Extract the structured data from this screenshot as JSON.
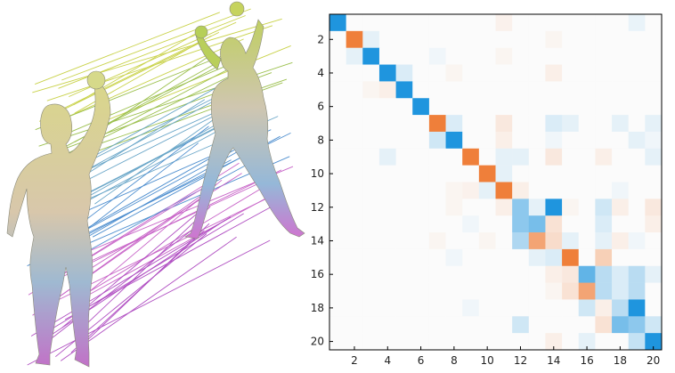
{
  "left_panel": {
    "description_icon": "shape-correspondence-icon",
    "line_colors": [
      "#c9d24a",
      "#9cc04e",
      "#6aa6c8",
      "#4f8fcf",
      "#c865c8",
      "#b04fc2"
    ]
  },
  "chart_data": {
    "type": "heatmap",
    "title": "",
    "xlabel": "",
    "ylabel": "",
    "x_ticks": [
      "2",
      "4",
      "6",
      "8",
      "10",
      "12",
      "14",
      "16",
      "18",
      "20"
    ],
    "y_ticks": [
      "2",
      "4",
      "6",
      "8",
      "10",
      "12",
      "14",
      "16",
      "18",
      "20"
    ],
    "size": 20,
    "colormap": {
      "positive": "#ef7f3a",
      "negative": "#1f95de",
      "zero": "#fbfbfb"
    },
    "grid": false,
    "values": [
      [
        -1.0,
        0,
        0,
        0,
        0,
        0,
        0,
        0,
        0,
        0,
        0.08,
        0,
        0,
        0,
        0,
        0,
        0,
        0,
        -0.08,
        0
      ],
      [
        0,
        1.0,
        -0.1,
        0,
        0,
        0,
        0,
        0,
        0,
        0,
        0,
        0,
        0,
        0.05,
        0,
        0,
        0,
        0,
        0,
        0
      ],
      [
        0,
        -0.1,
        -1.0,
        0,
        0,
        0,
        -0.05,
        0,
        0,
        0,
        0.05,
        0,
        0,
        0,
        0,
        0,
        0,
        0,
        0,
        0
      ],
      [
        0,
        0,
        0,
        -1.0,
        -0.15,
        0,
        0,
        0.05,
        0,
        0,
        0,
        0,
        0,
        0.1,
        0,
        0,
        0,
        0,
        0,
        0
      ],
      [
        0,
        0,
        0.05,
        0.1,
        -1.0,
        0,
        0,
        0,
        0,
        0,
        0,
        0,
        0,
        0,
        0,
        0,
        0,
        0,
        0,
        0
      ],
      [
        0,
        0,
        0,
        0,
        0,
        -1.0,
        0,
        0,
        0,
        0,
        0,
        0,
        0,
        0,
        0,
        0,
        0,
        0,
        0,
        0
      ],
      [
        0,
        0,
        0,
        0,
        0,
        0,
        1.0,
        -0.15,
        0,
        0,
        0.15,
        0,
        0,
        -0.15,
        -0.1,
        0,
        0,
        -0.1,
        0,
        -0.1
      ],
      [
        0,
        0,
        0,
        0,
        0,
        0,
        -0.2,
        -1.0,
        0,
        0,
        0.1,
        0,
        0,
        -0.05,
        0,
        0,
        0,
        0,
        -0.1,
        -0.05
      ],
      [
        0,
        0,
        0,
        -0.1,
        0,
        0,
        0,
        0,
        1.0,
        0,
        -0.1,
        -0.1,
        0,
        0.15,
        0,
        0,
        0.1,
        0,
        0,
        -0.1
      ],
      [
        0,
        0,
        0,
        0,
        0,
        0,
        0,
        0,
        0,
        1.0,
        -0.1,
        0,
        0,
        0,
        0,
        0,
        0,
        0,
        0,
        0
      ],
      [
        0,
        0,
        0,
        0,
        0,
        0,
        0,
        0.05,
        0.08,
        -0.1,
        1.0,
        0.1,
        0,
        0,
        0,
        0,
        0,
        -0.05,
        0,
        0
      ],
      [
        0,
        0,
        0,
        0,
        0,
        0,
        0,
        0.05,
        0,
        0,
        0.1,
        -0.5,
        -0.1,
        -1.0,
        0.05,
        0,
        -0.2,
        0.1,
        0,
        0.15
      ],
      [
        0,
        0,
        0,
        0,
        0,
        0,
        0,
        0,
        -0.05,
        0,
        0,
        -0.5,
        -0.6,
        0.2,
        0,
        0,
        -0.15,
        0,
        0,
        0.1
      ],
      [
        0,
        0,
        0,
        0,
        0,
        0,
        0.05,
        0,
        0,
        0.05,
        0,
        -0.35,
        0.7,
        0.25,
        -0.1,
        0,
        -0.1,
        0.1,
        -0.05,
        0
      ],
      [
        0,
        0,
        0,
        0,
        0,
        0,
        0,
        -0.05,
        0,
        0,
        0,
        0,
        -0.1,
        -0.15,
        1.0,
        0,
        0.35,
        0,
        0,
        0
      ],
      [
        0,
        0,
        0,
        0,
        0,
        0,
        0,
        0,
        0,
        0,
        0,
        0,
        0,
        0.1,
        0.15,
        -0.7,
        -0.3,
        -0.15,
        -0.3,
        -0.1
      ],
      [
        0,
        0,
        0,
        0,
        0,
        0,
        0,
        0,
        0,
        0,
        0,
        0,
        0,
        0.05,
        0.2,
        0.7,
        -0.3,
        -0.15,
        -0.3,
        0
      ],
      [
        0,
        0,
        0,
        0,
        0,
        0,
        0,
        0,
        -0.05,
        0,
        0,
        0,
        0,
        0,
        0,
        -0.2,
        0.1,
        -0.3,
        -1.0,
        0
      ],
      [
        0,
        0,
        0,
        0,
        0,
        0,
        0,
        0,
        0,
        0,
        0,
        -0.2,
        0,
        0,
        0,
        0,
        0.2,
        -0.6,
        -0.5,
        -0.2
      ],
      [
        0,
        0,
        0,
        0,
        0,
        0,
        0,
        0,
        0,
        0,
        0,
        0,
        0,
        0.1,
        0,
        -0.1,
        0,
        0,
        -0.25,
        -1.0
      ]
    ]
  }
}
